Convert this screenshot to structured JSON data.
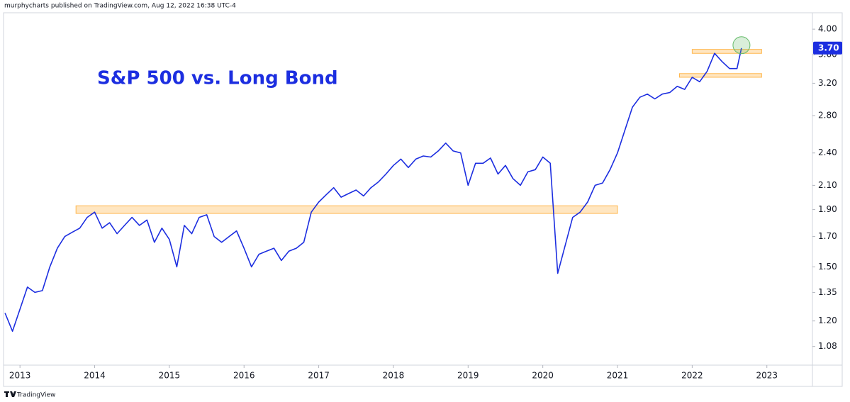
{
  "chart_data": {
    "type": "line",
    "header": "murphycharts published on TradingView.com, Aug 12, 2022 16:38 UTC-4",
    "title": "S&P 500 vs. Long Bond",
    "footer": "TradingView",
    "log_scale": true,
    "grid": false,
    "xlim": [
      2012.78,
      2023.61
    ],
    "xticks": [
      2013,
      2014,
      2015,
      2016,
      2017,
      2018,
      2019,
      2020,
      2021,
      2022,
      2023
    ],
    "ylim": [
      1.0,
      4.28
    ],
    "yticks": [
      {
        "value": 4.0,
        "label": "4.00"
      },
      {
        "value": 3.6,
        "label": "3.60"
      },
      {
        "value": 3.2,
        "label": "3.20"
      },
      {
        "value": 2.8,
        "label": "2.80"
      },
      {
        "value": 2.4,
        "label": "2.40"
      },
      {
        "value": 2.1,
        "label": "2.10"
      },
      {
        "value": 1.9,
        "label": "1.90"
      },
      {
        "value": 1.7,
        "label": "1.70"
      },
      {
        "value": 1.5,
        "label": "1.50"
      },
      1.35,
      {
        "value": 1.2,
        "label": "1.20"
      },
      1.08
    ],
    "x": [
      2012.8,
      2012.9,
      2013.0,
      2013.1,
      2013.2,
      2013.3,
      2013.4,
      2013.5,
      2013.6,
      2013.7,
      2013.8,
      2013.9,
      2014.0,
      2014.1,
      2014.2,
      2014.3,
      2014.4,
      2014.5,
      2014.6,
      2014.7,
      2014.8,
      2014.9,
      2015.0,
      2015.1,
      2015.2,
      2015.3,
      2015.4,
      2015.5,
      2015.6,
      2015.7,
      2015.8,
      2015.9,
      2016.0,
      2016.1,
      2016.2,
      2016.3,
      2016.4,
      2016.5,
      2016.6,
      2016.7,
      2016.8,
      2016.9,
      2017.0,
      2017.1,
      2017.2,
      2017.3,
      2017.4,
      2017.5,
      2017.6,
      2017.7,
      2017.8,
      2017.9,
      2018.0,
      2018.1,
      2018.2,
      2018.3,
      2018.4,
      2018.5,
      2018.6,
      2018.7,
      2018.8,
      2018.9,
      2019.0,
      2019.1,
      2019.2,
      2019.3,
      2019.4,
      2019.5,
      2019.6,
      2019.7,
      2019.8,
      2019.9,
      2020.0,
      2020.1,
      2020.2,
      2020.3,
      2020.4,
      2020.5,
      2020.6,
      2020.7,
      2020.8,
      2020.9,
      2021.0,
      2021.1,
      2021.2,
      2021.3,
      2021.4,
      2021.5,
      2021.6,
      2021.7,
      2021.8,
      2021.9,
      2022.0,
      2022.1,
      2022.2,
      2022.3,
      2022.4,
      2022.5,
      2022.6,
      2022.66
    ],
    "series": [
      {
        "name": "S&P 500 / Long Bond",
        "color": "#1c2ee0",
        "values": [
          1.24,
          1.15,
          1.26,
          1.38,
          1.35,
          1.36,
          1.5,
          1.62,
          1.7,
          1.73,
          1.76,
          1.84,
          1.88,
          1.76,
          1.8,
          1.72,
          1.78,
          1.84,
          1.78,
          1.82,
          1.66,
          1.76,
          1.68,
          1.5,
          1.78,
          1.72,
          1.84,
          1.86,
          1.7,
          1.66,
          1.7,
          1.74,
          1.62,
          1.5,
          1.58,
          1.6,
          1.62,
          1.54,
          1.6,
          1.62,
          1.66,
          1.88,
          1.96,
          2.02,
          2.08,
          2.0,
          2.03,
          2.06,
          2.01,
          2.08,
          2.13,
          2.2,
          2.28,
          2.34,
          2.26,
          2.34,
          2.37,
          2.36,
          2.42,
          2.5,
          2.42,
          2.4,
          2.1,
          2.3,
          2.3,
          2.35,
          2.2,
          2.28,
          2.16,
          2.1,
          2.22,
          2.24,
          2.36,
          2.3,
          1.46,
          1.64,
          1.84,
          1.88,
          1.96,
          2.1,
          2.12,
          2.24,
          2.4,
          2.64,
          2.9,
          3.02,
          3.06,
          3.0,
          3.06,
          3.08,
          3.16,
          3.12,
          3.28,
          3.22,
          3.36,
          3.62,
          3.5,
          3.4,
          3.4,
          3.7
        ]
      }
    ],
    "price_label": {
      "value": 3.7,
      "label": "3.70"
    },
    "zones": [
      {
        "x": [
          2013.75,
          2021.0
        ],
        "y": [
          1.87,
          1.93
        ]
      },
      {
        "x": [
          2022.0,
          2022.93
        ],
        "y": [
          3.62,
          3.68
        ]
      },
      {
        "x": [
          2021.83,
          2022.93
        ],
        "y": [
          3.28,
          3.33
        ]
      }
    ]
  }
}
